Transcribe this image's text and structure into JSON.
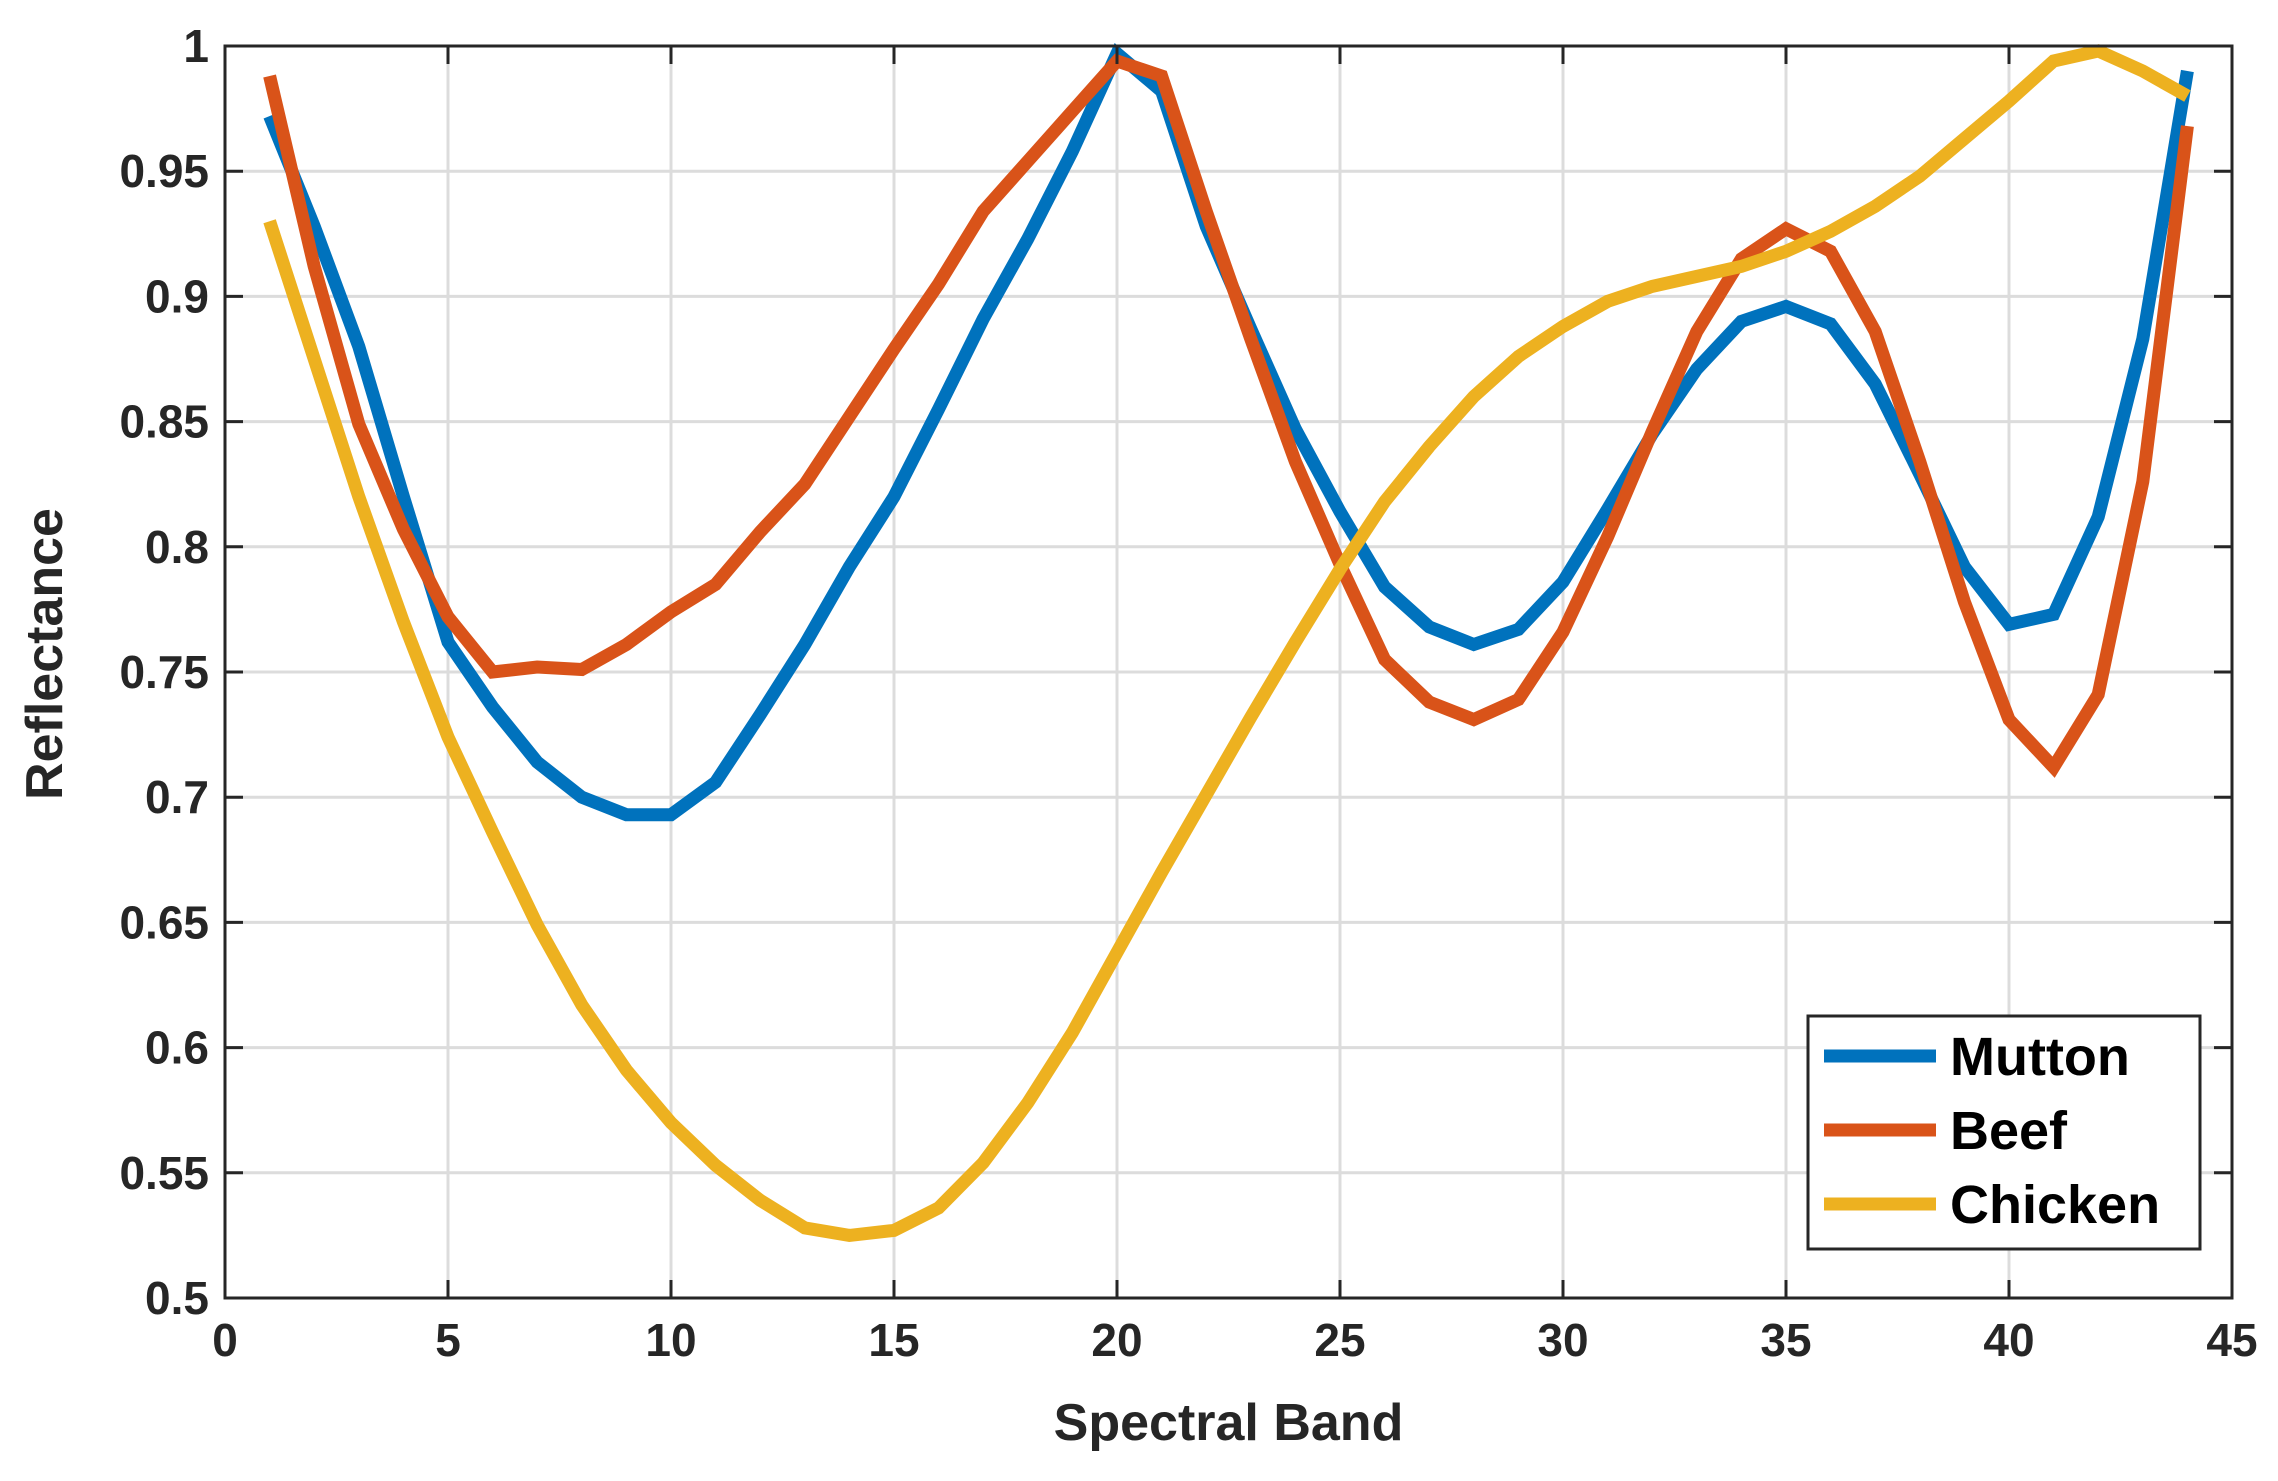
{
  "chart_data": {
    "type": "line",
    "xlabel": "Spectral Band",
    "ylabel": "Reflectance",
    "xlim": [
      0,
      45
    ],
    "ylim": [
      0.5,
      1
    ],
    "xticks": [
      0,
      5,
      10,
      15,
      20,
      25,
      30,
      35,
      40,
      45
    ],
    "xtick_labels": [
      "0",
      "5",
      "10",
      "15",
      "20",
      "25",
      "30",
      "35",
      "40",
      "45"
    ],
    "yticks": [
      0.5,
      0.55,
      0.6,
      0.65,
      0.7,
      0.75,
      0.8,
      0.85,
      0.9,
      0.95,
      1
    ],
    "ytick_labels": [
      "0.5",
      "0.55",
      "0.6",
      "0.65",
      "0.7",
      "0.75",
      "0.8",
      "0.85",
      "0.9",
      "0.95",
      "1"
    ],
    "grid": true,
    "legend_position": "bottom-right",
    "x": [
      1,
      2,
      3,
      4,
      5,
      6,
      7,
      8,
      9,
      10,
      11,
      12,
      13,
      14,
      15,
      16,
      17,
      18,
      19,
      20,
      21,
      22,
      23,
      24,
      25,
      26,
      27,
      28,
      29,
      30,
      31,
      32,
      33,
      34,
      35,
      36,
      37,
      38,
      39,
      40,
      41,
      42,
      43,
      44
    ],
    "series": [
      {
        "name": "Mutton",
        "color": "#0072BD",
        "values": [
          0.972,
          0.928,
          0.88,
          0.82,
          0.762,
          0.736,
          0.714,
          0.7,
          0.693,
          0.693,
          0.706,
          0.733,
          0.761,
          0.792,
          0.82,
          0.855,
          0.891,
          0.923,
          0.958,
          0.997,
          0.982,
          0.928,
          0.887,
          0.847,
          0.814,
          0.784,
          0.768,
          0.761,
          0.767,
          0.786,
          0.815,
          0.845,
          0.871,
          0.89,
          0.896,
          0.889,
          0.865,
          0.829,
          0.792,
          0.769,
          0.773,
          0.812,
          0.883,
          0.99
        ]
      },
      {
        "name": "Beef",
        "color": "#D95319",
        "values": [
          0.988,
          0.912,
          0.849,
          0.807,
          0.772,
          0.75,
          0.752,
          0.751,
          0.761,
          0.774,
          0.785,
          0.806,
          0.825,
          0.852,
          0.879,
          0.905,
          0.934,
          0.954,
          0.974,
          0.994,
          0.988,
          0.934,
          0.883,
          0.834,
          0.793,
          0.755,
          0.738,
          0.731,
          0.739,
          0.766,
          0.804,
          0.846,
          0.886,
          0.915,
          0.927,
          0.918,
          0.886,
          0.834,
          0.778,
          0.731,
          0.712,
          0.741,
          0.826,
          0.968
        ]
      },
      {
        "name": "Chicken",
        "color": "#EDB120",
        "values": [
          0.93,
          0.875,
          0.82,
          0.77,
          0.724,
          0.686,
          0.649,
          0.617,
          0.591,
          0.57,
          0.553,
          0.539,
          0.528,
          0.525,
          0.527,
          0.536,
          0.554,
          0.578,
          0.606,
          0.638,
          0.67,
          0.701,
          0.732,
          0.762,
          0.791,
          0.818,
          0.84,
          0.86,
          0.876,
          0.888,
          0.898,
          0.904,
          0.908,
          0.912,
          0.918,
          0.926,
          0.936,
          0.948,
          0.963,
          0.978,
          0.994,
          0.998,
          0.99,
          0.98
        ]
      }
    ]
  }
}
